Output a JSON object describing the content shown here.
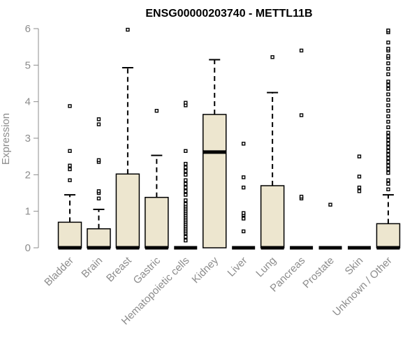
{
  "chart_data": {
    "type": "box",
    "title": "ENSG00000203740 - METTL11B",
    "xlabel": "",
    "ylabel": "Expression",
    "ylim": [
      0,
      6
    ],
    "yticks": [
      "0",
      "1",
      "2",
      "3",
      "4",
      "5",
      "6"
    ],
    "box_color": "#ede6cf",
    "categories": [
      "Bladder",
      "Brain",
      "Breast",
      "Gastric",
      "Hematopoietic cells",
      "Kidney",
      "Liver",
      "Lung",
      "Pancreas",
      "Prostate",
      "Skin",
      "Unknown / Other"
    ],
    "boxes": [
      {
        "min": 0,
        "q1": 0,
        "median": 0,
        "q3": 0.7,
        "max": 1.45,
        "outliers": [
          1.85,
          2.15,
          2.25,
          2.65,
          3.88
        ]
      },
      {
        "min": 0,
        "q1": 0,
        "median": 0,
        "q3": 0.52,
        "max": 1.05,
        "outliers": [
          1.35,
          1.5,
          1.55,
          2.35,
          2.4,
          3.38,
          3.52
        ]
      },
      {
        "min": 0,
        "q1": 0,
        "median": 0,
        "q3": 2.02,
        "max": 4.93,
        "outliers": [
          5.97
        ]
      },
      {
        "min": 0,
        "q1": 0,
        "median": 0,
        "q3": 1.38,
        "max": 2.53,
        "outliers": [
          3.75
        ]
      },
      {
        "min": 0,
        "q1": 0,
        "median": 0,
        "q3": 0,
        "max": 0,
        "outliers": [
          0.2,
          0.3,
          0.4,
          0.45,
          0.5,
          0.55,
          0.6,
          0.65,
          0.7,
          0.75,
          0.8,
          0.85,
          0.9,
          0.95,
          1.0,
          1.05,
          1.1,
          1.15,
          1.2,
          1.3,
          1.45,
          1.55,
          1.65,
          1.75,
          1.85,
          2.0,
          2.1,
          2.2,
          2.3,
          2.65,
          3.9,
          3.97
        ]
      },
      {
        "min": 0,
        "q1": 0,
        "median": 2.62,
        "q3": 3.65,
        "max": 5.15,
        "outliers": []
      },
      {
        "min": 0,
        "q1": 0,
        "median": 0,
        "q3": 0,
        "max": 0,
        "outliers": [
          0.45,
          0.8,
          0.9,
          0.95,
          1.65,
          1.93,
          2.85
        ]
      },
      {
        "min": 0,
        "q1": 0,
        "median": 0,
        "q3": 1.7,
        "max": 4.25,
        "outliers": [
          5.22
        ]
      },
      {
        "min": 0,
        "q1": 0,
        "median": 0,
        "q3": 0,
        "max": 0,
        "outliers": [
          1.35,
          1.4,
          3.63,
          5.4
        ]
      },
      {
        "min": 0,
        "q1": 0,
        "median": 0,
        "q3": 0,
        "max": 0,
        "outliers": [
          1.18
        ]
      },
      {
        "min": 0,
        "q1": 0,
        "median": 0,
        "q3": 0,
        "max": 0,
        "outliers": [
          1.55,
          1.65,
          1.95,
          2.5
        ]
      },
      {
        "min": 0,
        "q1": 0,
        "median": 0,
        "q3": 0.66,
        "max": 1.45,
        "outliers": [
          1.6,
          1.75,
          1.85,
          2.05,
          2.15,
          2.25,
          2.35,
          2.45,
          2.55,
          2.65,
          2.75,
          2.85,
          2.95,
          3.05,
          3.15,
          3.3,
          3.45,
          3.6,
          3.75,
          3.9,
          4.05,
          4.2,
          4.35,
          4.45,
          4.55,
          4.75,
          4.9,
          5.05,
          5.2,
          5.25,
          5.4,
          5.45,
          5.62,
          5.9,
          5.95
        ]
      }
    ]
  }
}
